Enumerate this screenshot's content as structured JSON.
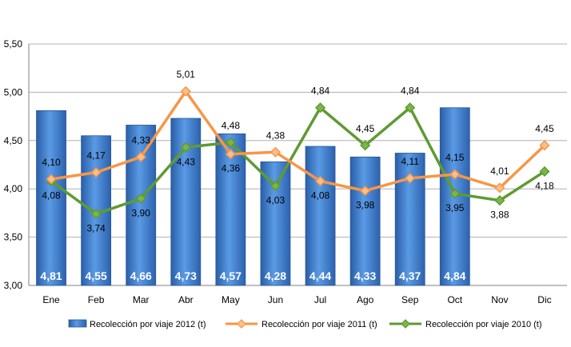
{
  "chart_data": {
    "type": "bar",
    "categories": [
      "Ene",
      "Feb",
      "Mar",
      "Abr",
      "May",
      "Jun",
      "Jul",
      "Ago",
      "Sep",
      "Oct",
      "Nov",
      "Dic"
    ],
    "ylim": [
      3.0,
      5.5
    ],
    "yticks": [
      "3,00",
      "3,50",
      "4,00",
      "4,50",
      "5,00",
      "5,50"
    ],
    "ytick_values": [
      3.0,
      3.5,
      4.0,
      4.5,
      5.0,
      5.5
    ],
    "grid": true,
    "legend_position": "bottom",
    "series": [
      {
        "name": "Recolección por viaje 2012 (t)",
        "type": "bar",
        "color": "#3f7fd0",
        "values": [
          4.81,
          4.55,
          4.66,
          4.73,
          4.57,
          4.28,
          4.44,
          4.33,
          4.37,
          4.84,
          null,
          null
        ],
        "labels": [
          "4,81",
          "4,55",
          "4,66",
          "4,73",
          "4,57",
          "4,28",
          "4,44",
          "4,33",
          "4,37",
          "4,84",
          null,
          null
        ]
      },
      {
        "name": "Recolección por viaje 2011 (t)",
        "type": "line",
        "color": "#f79646",
        "values": [
          4.1,
          4.17,
          4.33,
          5.01,
          4.36,
          4.38,
          4.08,
          3.98,
          4.11,
          4.15,
          4.01,
          4.45
        ],
        "labels": [
          "4,10",
          "4,17",
          "4,33",
          "5,01",
          "4,36",
          "4,38",
          "4,08",
          "3,98",
          "4,11",
          "4,15",
          "4,01",
          "4,45"
        ]
      },
      {
        "name": "Recolección por viaje 2010 (t)",
        "type": "line",
        "color": "#5f9a32",
        "values": [
          4.08,
          3.74,
          3.9,
          4.43,
          4.48,
          4.03,
          4.84,
          4.45,
          4.84,
          3.95,
          3.88,
          4.18
        ],
        "labels": [
          "4,08",
          "3,74",
          "3,90",
          "4,43",
          "4,48",
          "4,03",
          "4,84",
          "4,45",
          "4,84",
          "3,95",
          "3,88",
          "4,18"
        ]
      }
    ]
  }
}
